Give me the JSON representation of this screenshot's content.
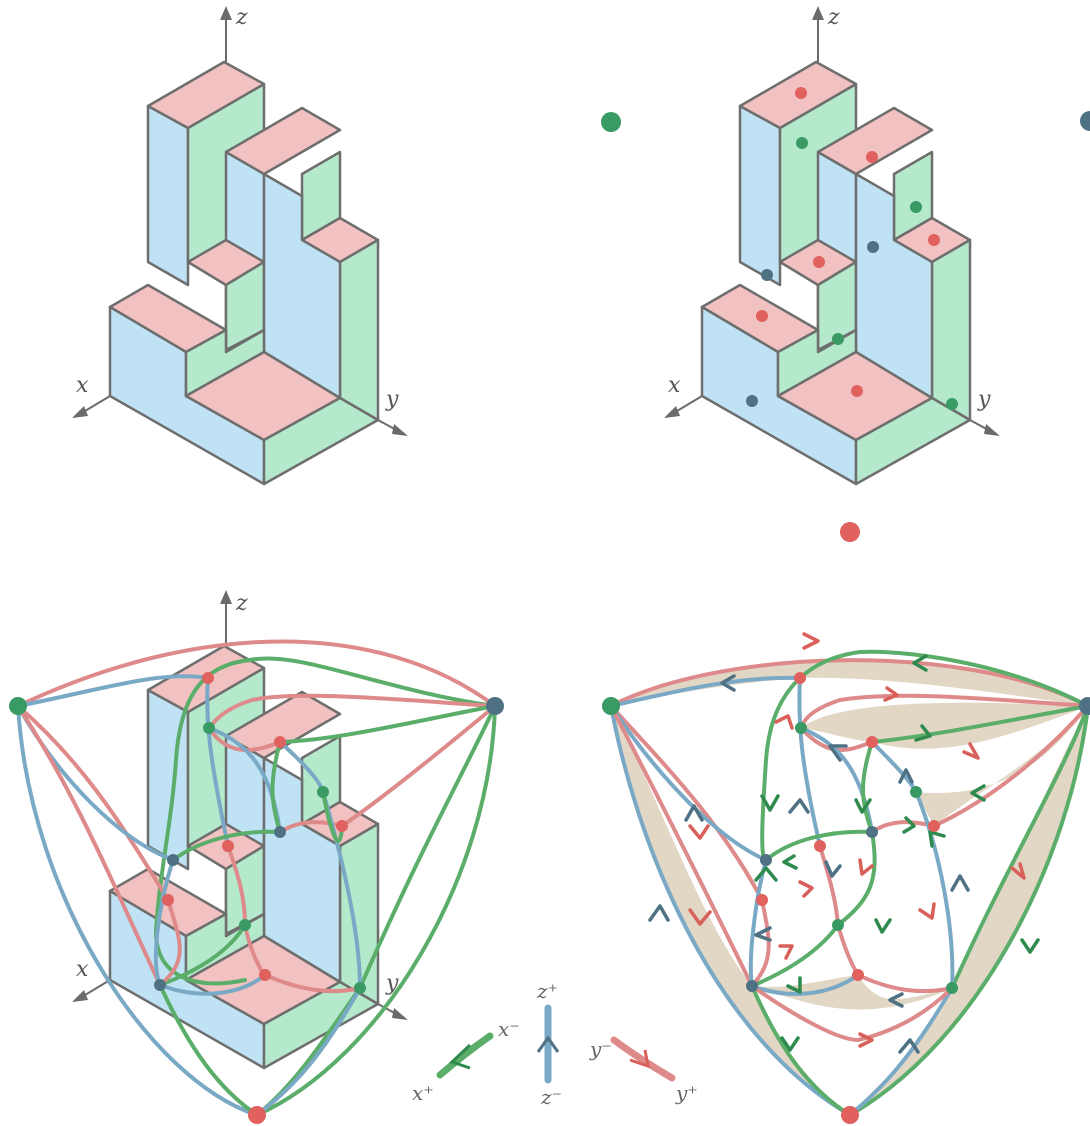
{
  "axes": {
    "x": "x",
    "y": "y",
    "z": "z"
  },
  "legend": {
    "x_minus": "x⁻",
    "x_plus": "x⁺",
    "z_plus": "z⁺",
    "z_minus": "z⁻",
    "y_minus": "y⁻",
    "y_plus": "y⁺"
  },
  "colors": {
    "top_face": "#f2c1c1",
    "x_face": "#bfe3f4",
    "y_face": "#b4e9cc",
    "red": "#de8a8a",
    "blue": "#7aa9c6",
    "green": "#5aae6a",
    "node_red": "#e0615d",
    "node_green": "#3a9a63",
    "node_slate": "#4f7184",
    "region": "#e2d6c4"
  }
}
